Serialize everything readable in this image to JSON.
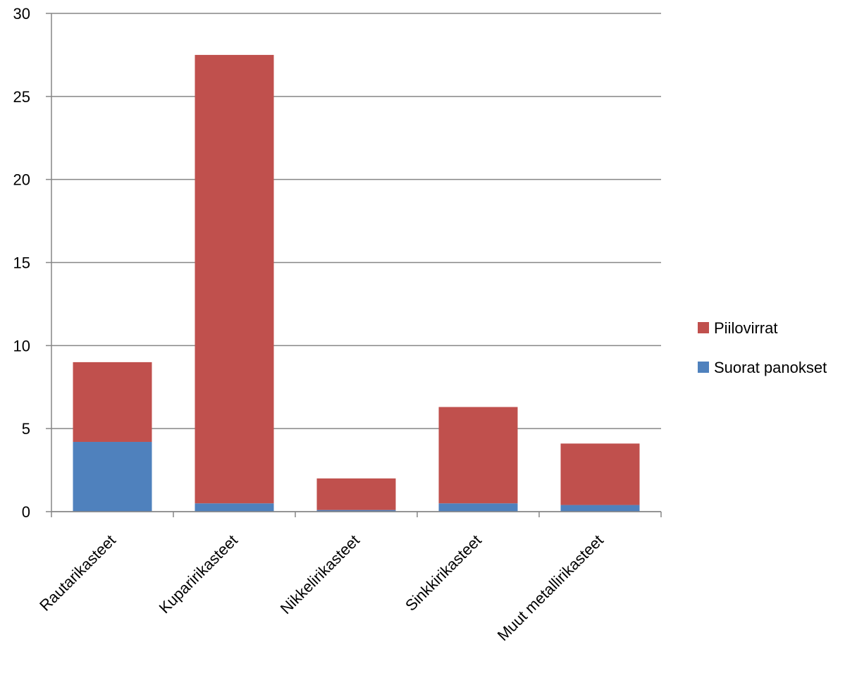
{
  "chart_data": {
    "type": "bar",
    "stacked": true,
    "categories": [
      "Rautarikasteet",
      "Kuparirikasteet",
      "Nikkelirikasteet",
      "Sinkkirikasteet",
      "Muut metallirikasteet"
    ],
    "series": [
      {
        "name": "Suorat panokset",
        "color": "#4F81BD",
        "values": [
          4.2,
          0.5,
          0.1,
          0.5,
          0.4
        ]
      },
      {
        "name": "Piilovirrat",
        "color": "#C0504D",
        "values": [
          4.8,
          27.0,
          1.9,
          5.8,
          3.7
        ]
      }
    ],
    "ylim": [
      0,
      30
    ],
    "yticks": [
      "0",
      "5",
      "10",
      "15",
      "20",
      "25",
      "30"
    ],
    "grid": true,
    "legend_position": "right",
    "title": "",
    "xlabel": "",
    "ylabel": ""
  }
}
